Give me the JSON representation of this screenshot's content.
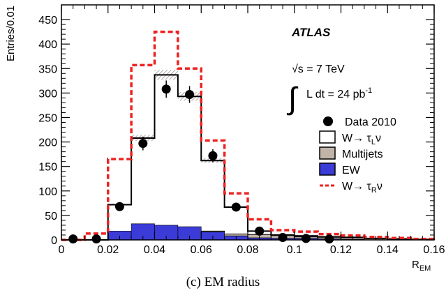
{
  "caption": "(c) EM radius",
  "chart_data": {
    "type": "histogram",
    "xlabel": "R",
    "xlabel_sub": "EM",
    "ylabel": "Entries/0.01",
    "xlim": [
      0,
      0.16
    ],
    "ylim": [
      0,
      480
    ],
    "x_ticks": [
      "0",
      "0.02",
      "0.04",
      "0.06",
      "0.08",
      "0.1",
      "0.12",
      "0.14",
      "0.16"
    ],
    "y_ticks": [
      "0",
      "50",
      "100",
      "150",
      "200",
      "250",
      "300",
      "350",
      "400",
      "450"
    ],
    "bin_edges": [
      0,
      0.01,
      0.02,
      0.03,
      0.04,
      0.05,
      0.06,
      0.07,
      0.08,
      0.09,
      0.1,
      0.11,
      0.12,
      0.13,
      0.14,
      0.15,
      0.16
    ],
    "annotations": {
      "experiment": "ATLAS",
      "energy": "√s = 7 TeV",
      "lumi_prefix": "L dt = 24 pb",
      "lumi_exp": "-1"
    },
    "series": [
      {
        "name": "EW",
        "kind": "filled",
        "color": "#3b3bd8",
        "values": [
          0,
          0,
          18,
          33,
          30,
          27,
          16,
          8,
          4,
          3,
          3,
          2,
          1,
          0,
          0,
          0
        ]
      },
      {
        "name": "Multijets",
        "kind": "stacked",
        "color": "#c2b3a8",
        "values": [
          0,
          0,
          0,
          0,
          0,
          0,
          2,
          4,
          7,
          6,
          6,
          5,
          5,
          3,
          2,
          1
        ]
      },
      {
        "name": "W→ τLν",
        "kind": "stacked-outline",
        "color": "#000000",
        "values": [
          0,
          0,
          72,
          208,
          337,
          293,
          162,
          67,
          18,
          10,
          7,
          6,
          5,
          3,
          2,
          1
        ]
      },
      {
        "name": "W→ τRν",
        "kind": "dashed",
        "color": "#ee2222",
        "values": [
          0,
          13,
          165,
          357,
          425,
          350,
          203,
          95,
          42,
          20,
          17,
          12,
          9,
          6,
          4,
          2
        ]
      },
      {
        "name": "Data 2010",
        "kind": "points",
        "x": [
          0.005,
          0.015,
          0.025,
          0.035,
          0.045,
          0.055,
          0.065,
          0.075,
          0.085,
          0.095,
          0.105,
          0.115
        ],
        "values": [
          2,
          2,
          68,
          197,
          308,
          297,
          172,
          67,
          18,
          5,
          3,
          2
        ]
      }
    ],
    "legend": [
      "Data 2010",
      "W→ τLν",
      "Multijets",
      "EW",
      "W→ τRν"
    ],
    "legend_placement": "right"
  }
}
